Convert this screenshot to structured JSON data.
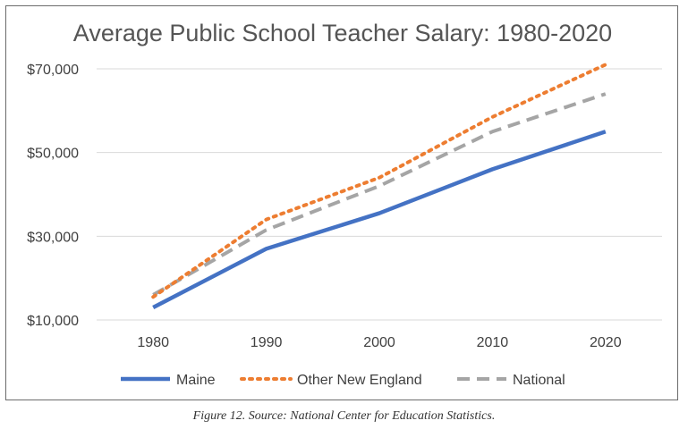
{
  "chart_data": {
    "type": "line",
    "title": "Average Public School Teacher Salary: 1980-2020",
    "x": [
      "1980",
      "1990",
      "2000",
      "2010",
      "2020"
    ],
    "y_ticks": [
      "$10,000",
      "$30,000",
      "$50,000",
      "$70,000"
    ],
    "y_tick_values": [
      10000,
      30000,
      50000,
      70000
    ],
    "ylim": [
      10000,
      70000
    ],
    "grid": "horizontal",
    "legend_position": "bottom",
    "series": [
      {
        "name": "Maine",
        "values": [
          13000,
          27000,
          35500,
          46000,
          55000
        ],
        "color": "#4472C4",
        "style": "solid"
      },
      {
        "name": "Other New England",
        "values": [
          15500,
          34000,
          44000,
          58500,
          71000
        ],
        "color": "#ED7D31",
        "style": "dotted"
      },
      {
        "name": "National",
        "values": [
          16000,
          31500,
          42000,
          55000,
          64000
        ],
        "color": "#A5A5A5",
        "style": "dashed"
      }
    ]
  },
  "caption": "Figure 12. Source: National Center for Education Statistics."
}
